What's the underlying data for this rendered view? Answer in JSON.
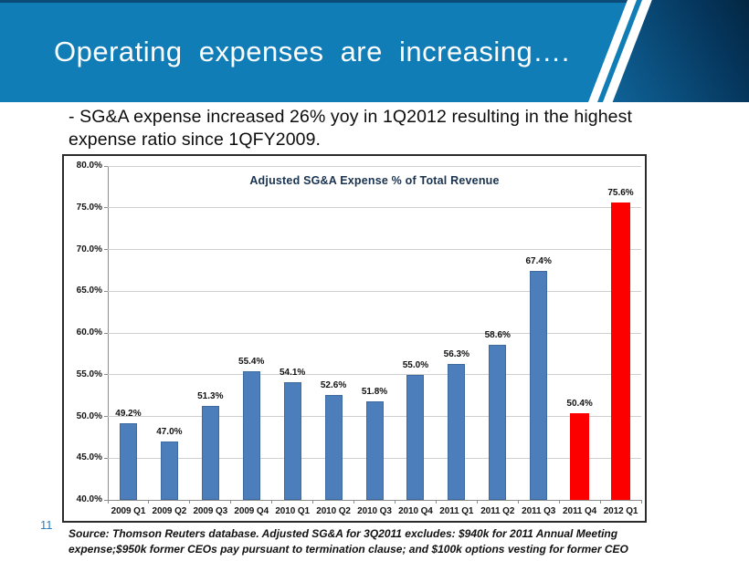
{
  "header": {
    "title": "Operating expenses are increasing…."
  },
  "bullet": {
    "line1": "- SG&A expense increased 26% yoy in 1Q2012 resulting in the highest",
    "line2": "expense ratio since 1QFY2009."
  },
  "chart_data": {
    "type": "bar",
    "title": "Adjusted SG&A Expense % of Total Revenue",
    "categories": [
      "2009 Q1",
      "2009 Q2",
      "2009 Q3",
      "2009 Q4",
      "2010 Q1",
      "2010 Q2",
      "2010 Q3",
      "2010 Q4",
      "2011 Q1",
      "2011 Q2",
      "2011 Q3",
      "2011 Q4",
      "2012 Q1"
    ],
    "values": [
      49.2,
      47.0,
      51.3,
      55.4,
      54.1,
      52.6,
      51.8,
      55.0,
      56.3,
      58.6,
      67.4,
      50.4,
      75.6
    ],
    "value_labels": [
      "49.2%",
      "47.0%",
      "51.3%",
      "55.4%",
      "54.1%",
      "52.6%",
      "51.8%",
      "55.0%",
      "56.3%",
      "58.6%",
      "67.4%",
      "50.4%",
      "75.6%"
    ],
    "highlight_indices": [
      11,
      12
    ],
    "ylim": [
      40,
      80
    ],
    "yticks": [
      80,
      75,
      70,
      65,
      60,
      55,
      50,
      45,
      40
    ],
    "ytick_labels": [
      "80.0%",
      "75.0%",
      "70.0%",
      "65.0%",
      "60.0%",
      "55.0%",
      "50.0%",
      "45.0%",
      "40.0%"
    ],
    "grid": true,
    "legend": "none",
    "xlabel": "",
    "ylabel": ""
  },
  "colors": {
    "bar_blue": "#4d7ebc",
    "bar_blue_edge": "#3f6a9f",
    "bar_red": "#fc0000",
    "header_blue": "#117db7",
    "chart_title": "#18324f",
    "page_number_blue": "#2f7dbe"
  },
  "footer": {
    "page_number": "11",
    "source_line1": "Source: Thomson Reuters database. Adjusted SG&A for 3Q2011 excludes: $940k for 2011 Annual Meeting",
    "source_line2": "expense;$950k former CEOs pay pursuant to termination clause; and $100k options vesting for former CEO"
  }
}
